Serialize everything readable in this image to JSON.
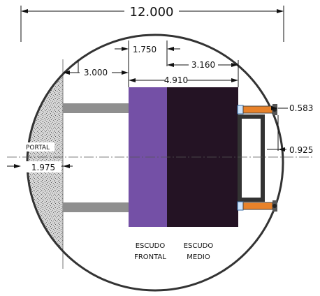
{
  "dimensions": {
    "overall": "12.000",
    "frontal_length": "1.750",
    "portal_gap": "3.000",
    "medio_length": "3.160",
    "shield_total": "4.910",
    "upper_offset": "0.583",
    "lower_offset": "0.925",
    "portal_offset": "1.975"
  },
  "labels": {
    "portal": "PORTAL",
    "frontal_line1": "ESCUDO",
    "frontal_line2": "FRONTAL",
    "medio_line1": "ESCUDO",
    "medio_line2": "MEDIO"
  },
  "colors": {
    "frontal_shield": "#7450a6",
    "medio_shield": "#241324",
    "jack": "#e8822a",
    "beam": "#8f8f8f",
    "ring": "#333333"
  }
}
